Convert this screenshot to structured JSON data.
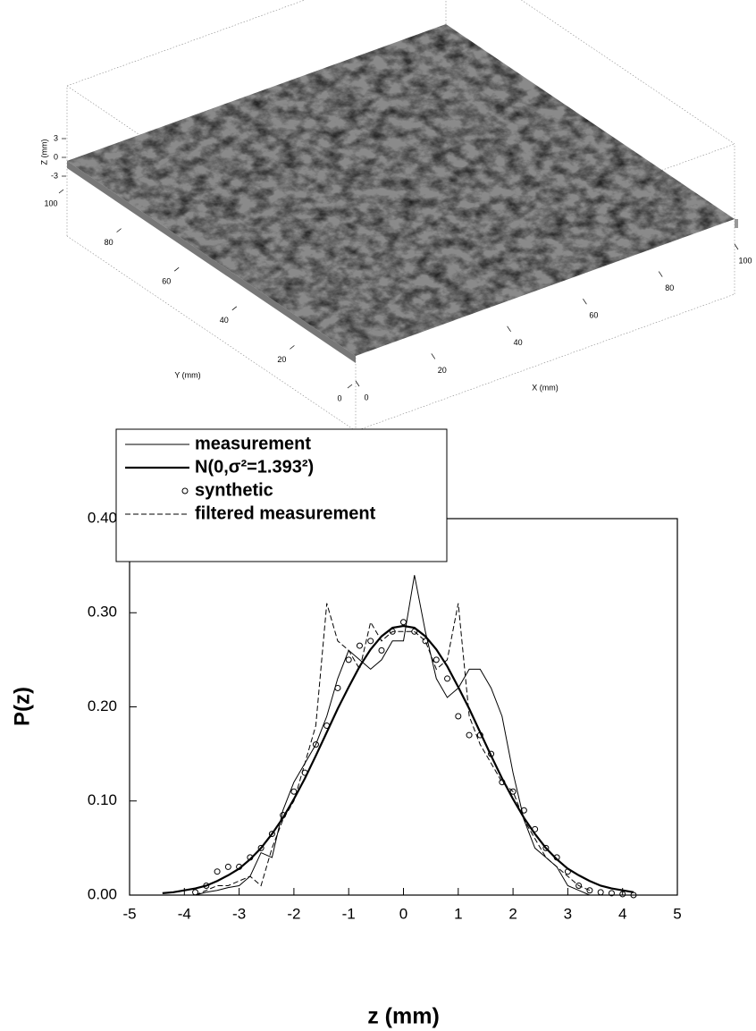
{
  "chart_data": [
    {
      "type": "surface",
      "xlabel": "X (mm)",
      "ylabel": "Y (mm)",
      "zlabel": "Z (mm)",
      "xlim": [
        0,
        100
      ],
      "ylim": [
        0,
        100
      ],
      "zlim": [
        -3,
        3
      ],
      "xticks": [
        0,
        20,
        40,
        60,
        80,
        100
      ],
      "yticks": [
        0,
        20,
        40,
        60,
        80,
        100
      ],
      "zticks": [
        -3,
        0,
        3
      ],
      "color": "#8a8a8a"
    },
    {
      "type": "line",
      "xlabel": "z (mm)",
      "ylabel": "P(z)",
      "xlim": [
        -5,
        5
      ],
      "ylim": [
        0,
        0.4
      ],
      "xticks": [
        -5,
        -4,
        -3,
        -2,
        -1,
        0,
        1,
        2,
        3,
        4,
        5
      ],
      "yticks": [
        {
          "value": 0,
          "label": "0.00"
        },
        {
          "value": 0.1,
          "label": "0.10"
        },
        {
          "value": 0.2,
          "label": "0.20"
        },
        {
          "value": 0.3,
          "label": "0.30"
        },
        {
          "value": 0.4,
          "label": "0.40"
        }
      ],
      "legend": "top-left",
      "x": [
        -4.4,
        -4.2,
        -4.0,
        -3.8,
        -3.6,
        -3.4,
        -3.2,
        -3.0,
        -2.8,
        -2.6,
        -2.4,
        -2.2,
        -2.0,
        -1.8,
        -1.6,
        -1.4,
        -1.2,
        -1.0,
        -0.8,
        -0.6,
        -0.4,
        -0.2,
        0,
        0.2,
        0.4,
        0.6,
        0.8,
        1.0,
        1.2,
        1.4,
        1.6,
        1.8,
        2.0,
        2.2,
        2.4,
        2.6,
        2.8,
        3.0,
        3.2,
        3.4,
        3.6,
        3.8,
        4.0,
        4.2
      ],
      "series": [
        {
          "name": "measurement",
          "color": "#000000",
          "style": "line",
          "width": 1,
          "values": [
            null,
            null,
            null,
            0.0,
            0.003,
            0.005,
            0.008,
            0.01,
            0.02,
            0.045,
            0.04,
            0.09,
            0.12,
            0.14,
            0.16,
            0.19,
            0.23,
            0.26,
            0.25,
            0.24,
            0.25,
            0.27,
            0.27,
            0.34,
            0.28,
            0.23,
            0.21,
            0.22,
            0.24,
            0.24,
            0.22,
            0.19,
            0.13,
            0.08,
            0.05,
            0.04,
            0.03,
            0.01,
            0.005,
            0.0,
            null,
            null,
            null,
            null
          ]
        },
        {
          "name": "N(0,σ²=1.393²)",
          "color": "#000000",
          "style": "line",
          "width": 2.2,
          "values": [
            0.002,
            0.003,
            0.005,
            0.007,
            0.01,
            0.015,
            0.021,
            0.028,
            0.038,
            0.05,
            0.065,
            0.082,
            0.102,
            0.124,
            0.148,
            0.173,
            0.198,
            0.221,
            0.243,
            0.261,
            0.275,
            0.284,
            0.286,
            0.284,
            0.275,
            0.261,
            0.243,
            0.221,
            0.198,
            0.173,
            0.148,
            0.124,
            0.102,
            0.082,
            0.065,
            0.05,
            0.038,
            0.028,
            0.021,
            0.015,
            0.01,
            0.007,
            0.005,
            0.003
          ]
        },
        {
          "name": "synthetic",
          "color": "#000000",
          "style": "markers",
          "width": 1,
          "values": [
            null,
            null,
            null,
            0.003,
            0.01,
            0.025,
            0.03,
            0.03,
            0.04,
            0.05,
            0.065,
            0.085,
            0.11,
            0.13,
            0.16,
            0.18,
            0.22,
            0.25,
            0.265,
            0.27,
            0.26,
            0.28,
            0.29,
            0.28,
            0.27,
            0.25,
            0.23,
            0.19,
            0.17,
            0.17,
            0.15,
            0.12,
            0.11,
            0.09,
            0.07,
            0.05,
            0.04,
            0.025,
            0.01,
            0.005,
            0.003,
            0.002,
            0.001,
            0.0
          ]
        },
        {
          "name": "filtered measurement",
          "color": "#000000",
          "style": "dashed",
          "width": 1,
          "values": [
            null,
            null,
            null,
            0.0,
            0.005,
            0.01,
            0.01,
            0.015,
            0.02,
            0.01,
            0.05,
            0.08,
            0.1,
            0.14,
            0.18,
            0.31,
            0.27,
            0.26,
            0.24,
            0.29,
            0.27,
            0.28,
            0.28,
            0.28,
            0.27,
            0.24,
            0.25,
            0.31,
            0.19,
            0.16,
            0.14,
            0.12,
            0.11,
            0.08,
            0.06,
            0.04,
            0.03,
            0.02,
            0.01,
            0.005,
            null,
            null,
            null,
            null
          ]
        }
      ]
    }
  ]
}
